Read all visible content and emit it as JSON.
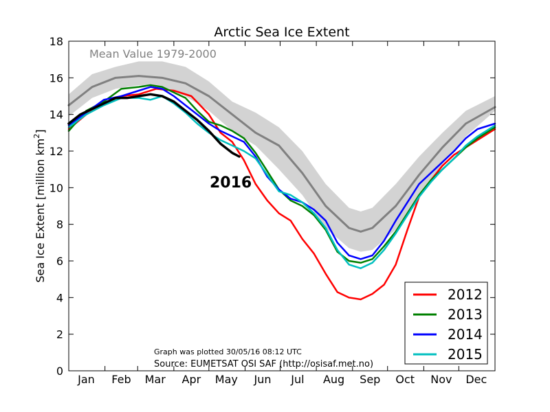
{
  "chart_data": {
    "type": "line",
    "title": "Arctic Sea Ice Extent",
    "xlabel": "",
    "ylabel": "Sea Ice Extent [million km",
    "ylabel_superscript": "2",
    "ylabel_tail": "]",
    "xlim": [
      0,
      365
    ],
    "ylim": [
      0,
      18
    ],
    "yticks": [
      0,
      2,
      4,
      6,
      8,
      10,
      12,
      14,
      16,
      18
    ],
    "month_labels": [
      "Jan",
      "Feb",
      "Mar",
      "Apr",
      "May",
      "Jun",
      "Jul",
      "Aug",
      "Sep",
      "Oct",
      "Nov",
      "Dec"
    ],
    "month_label_days": [
      15,
      45,
      74,
      105,
      135,
      166,
      196,
      227,
      258,
      288,
      319,
      349
    ],
    "month_tick_days": [
      0,
      31,
      59,
      90,
      120,
      151,
      181,
      212,
      243,
      273,
      304,
      334
    ],
    "band": {
      "label": "",
      "x": [
        0,
        20,
        40,
        60,
        80,
        100,
        120,
        140,
        160,
        180,
        200,
        220,
        240,
        250,
        260,
        280,
        300,
        320,
        340,
        365
      ],
      "lower": [
        13.9,
        14.9,
        15.4,
        15.6,
        15.5,
        15.0,
        14.2,
        13.1,
        12.3,
        11.0,
        9.6,
        7.8,
        6.7,
        6.5,
        6.6,
        7.7,
        9.5,
        11.3,
        12.8,
        14.2
      ],
      "upper": [
        15.1,
        16.2,
        16.6,
        16.9,
        16.9,
        16.6,
        15.8,
        14.7,
        14.1,
        13.3,
        12.0,
        10.2,
        8.9,
        8.7,
        8.9,
        10.2,
        11.7,
        13.0,
        14.2,
        15.0
      ]
    },
    "mean": {
      "label": "Mean Value 1979-2000",
      "x": [
        0,
        20,
        40,
        60,
        80,
        100,
        120,
        140,
        160,
        180,
        200,
        220,
        240,
        250,
        260,
        280,
        300,
        320,
        340,
        365
      ],
      "y": [
        14.5,
        15.5,
        16.0,
        16.1,
        16.0,
        15.7,
        15.0,
        14.0,
        13.0,
        12.3,
        10.8,
        9.0,
        7.8,
        7.6,
        7.8,
        9.0,
        10.7,
        12.2,
        13.5,
        14.4
      ]
    },
    "series": [
      {
        "name": "2012",
        "color": "#ff0000",
        "x": [
          0,
          15,
          30,
          45,
          60,
          75,
          90,
          105,
          120,
          130,
          140,
          150,
          160,
          170,
          180,
          190,
          200,
          210,
          220,
          230,
          240,
          250,
          260,
          270,
          280,
          290,
          300,
          310,
          320,
          330,
          340,
          350,
          365
        ],
        "y": [
          13.2,
          14.0,
          14.6,
          15.0,
          15.1,
          15.4,
          15.3,
          15.0,
          14.0,
          13.0,
          12.5,
          11.5,
          10.2,
          9.3,
          8.6,
          8.2,
          7.2,
          6.4,
          5.3,
          4.3,
          4.0,
          3.9,
          4.2,
          4.7,
          5.8,
          7.7,
          9.5,
          10.4,
          11.2,
          11.8,
          12.2,
          12.6,
          13.2
        ]
      },
      {
        "name": "2013",
        "color": "#008000",
        "x": [
          0,
          15,
          30,
          45,
          60,
          70,
          80,
          90,
          100,
          110,
          120,
          130,
          140,
          150,
          160,
          170,
          180,
          190,
          200,
          210,
          220,
          230,
          240,
          250,
          260,
          270,
          280,
          290,
          300,
          310,
          320,
          330,
          340,
          350,
          365
        ],
        "y": [
          13.1,
          14.2,
          14.7,
          15.4,
          15.5,
          15.6,
          15.5,
          15.2,
          14.9,
          14.2,
          13.6,
          13.4,
          13.1,
          12.7,
          11.9,
          10.9,
          9.9,
          9.3,
          9.0,
          8.5,
          7.7,
          6.5,
          6.0,
          5.9,
          6.1,
          6.8,
          7.6,
          8.6,
          9.6,
          10.4,
          11.0,
          11.6,
          12.2,
          12.7,
          13.3
        ]
      },
      {
        "name": "2014",
        "color": "#0000ff",
        "x": [
          0,
          15,
          30,
          45,
          60,
          70,
          80,
          90,
          100,
          110,
          120,
          130,
          140,
          150,
          160,
          170,
          180,
          190,
          200,
          210,
          220,
          230,
          240,
          250,
          260,
          270,
          280,
          290,
          300,
          310,
          320,
          330,
          340,
          350,
          365
        ],
        "y": [
          13.4,
          14.1,
          14.8,
          15.0,
          15.3,
          15.5,
          15.4,
          15.0,
          14.5,
          14.0,
          13.5,
          13.1,
          12.8,
          12.5,
          11.7,
          10.6,
          9.9,
          9.4,
          9.2,
          8.8,
          8.2,
          7.0,
          6.3,
          6.1,
          6.3,
          7.1,
          8.2,
          9.2,
          10.2,
          10.8,
          11.4,
          12.0,
          12.7,
          13.2,
          13.5
        ]
      },
      {
        "name": "2015",
        "color": "#00bfbf",
        "x": [
          0,
          15,
          30,
          45,
          60,
          70,
          80,
          90,
          100,
          110,
          120,
          130,
          140,
          150,
          160,
          170,
          180,
          190,
          200,
          210,
          220,
          230,
          240,
          250,
          260,
          270,
          280,
          290,
          300,
          310,
          320,
          330,
          340,
          350,
          365
        ],
        "y": [
          13.3,
          14.0,
          14.5,
          14.9,
          14.9,
          14.8,
          15.0,
          14.6,
          14.1,
          13.5,
          13.0,
          12.6,
          12.3,
          12.0,
          11.6,
          10.7,
          9.8,
          9.6,
          9.2,
          8.6,
          7.8,
          6.6,
          5.8,
          5.6,
          5.9,
          6.6,
          7.5,
          8.5,
          9.5,
          10.3,
          11.0,
          11.6,
          12.3,
          12.8,
          13.4
        ]
      },
      {
        "name": "2016",
        "color": "#000000",
        "x": [
          0,
          10,
          20,
          30,
          40,
          50,
          60,
          70,
          80,
          90,
          100,
          110,
          120,
          130,
          140,
          146
        ],
        "y": [
          13.5,
          14.0,
          14.3,
          14.6,
          14.9,
          14.9,
          15.0,
          15.1,
          15.0,
          14.7,
          14.2,
          13.7,
          13.1,
          12.4,
          11.9,
          11.7
        ]
      }
    ],
    "legend_order": [
      "2012",
      "2013",
      "2014",
      "2015"
    ],
    "label_2016": "2016",
    "note_plotted": "Graph was plotted 30/05/16 08:12 UTC",
    "note_source": "Source: EUMETSAT OSI SAF (http://osisaf.met.no)"
  }
}
